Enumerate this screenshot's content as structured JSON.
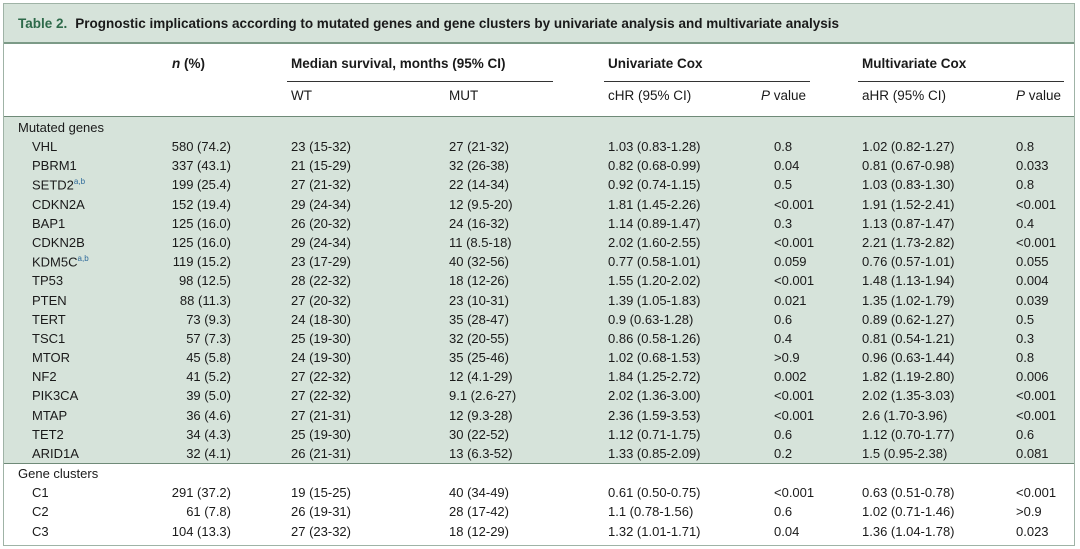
{
  "title": {
    "label": "Table 2.",
    "text": "Prognostic implications according to mutated genes and gene clusters by univariate analysis and multivariate analysis"
  },
  "headers": {
    "n_italic": "n",
    "n_rest": "(%)",
    "median_survival": "Median survival, months (95% CI)",
    "univariate": "Univariate Cox",
    "multivariate": "Multivariate Cox",
    "wt": "WT",
    "mut": "MUT",
    "chr": "cHR (95% CI)",
    "p_italic": "P",
    "p_rest": "value",
    "ahr": "aHR (95% CI)"
  },
  "sections": {
    "mutated": "Mutated genes",
    "clusters": "Gene clusters"
  },
  "mutated_rows": [
    {
      "gene": "VHL",
      "sup": "",
      "n": "580 (74.2)",
      "wt": "23 (15-32)",
      "mut": "27 (21-32)",
      "chr": "1.03 (0.83-1.28)",
      "p1": "0.8",
      "ahr": "1.02 (0.82-1.27)",
      "p2": "0.8"
    },
    {
      "gene": "PBRM1",
      "sup": "",
      "n": "337 (43.1)",
      "wt": "21 (15-29)",
      "mut": "32 (26-38)",
      "chr": "0.82 (0.68-0.99)",
      "p1": "0.04",
      "ahr": "0.81 (0.67-0.98)",
      "p2": "0.033"
    },
    {
      "gene": "SETD2",
      "sup": "a,b",
      "n": "199 (25.4)",
      "wt": "27 (21-32)",
      "mut": "22 (14-34)",
      "chr": "0.92 (0.74-1.15)",
      "p1": "0.5",
      "ahr": "1.03 (0.83-1.30)",
      "p2": "0.8"
    },
    {
      "gene": "CDKN2A",
      "sup": "",
      "n": "152 (19.4)",
      "wt": "29 (24-34)",
      "mut": "12 (9.5-20)",
      "chr": "1.81 (1.45-2.26)",
      "p1": "<0.001",
      "ahr": "1.91 (1.52-2.41)",
      "p2": "<0.001"
    },
    {
      "gene": "BAP1",
      "sup": "",
      "n": "125 (16.0)",
      "wt": "26 (20-32)",
      "mut": "24 (16-32)",
      "chr": "1.14 (0.89-1.47)",
      "p1": "0.3",
      "ahr": "1.13 (0.87-1.47)",
      "p2": "0.4"
    },
    {
      "gene": "CDKN2B",
      "sup": "",
      "n": "125 (16.0)",
      "wt": "29 (24-34)",
      "mut": "11 (8.5-18)",
      "chr": "2.02 (1.60-2.55)",
      "p1": "<0.001",
      "ahr": "2.21 (1.73-2.82)",
      "p2": "<0.001"
    },
    {
      "gene": "KDM5C",
      "sup": "a,b",
      "n": "119 (15.2)",
      "wt": "23 (17-29)",
      "mut": "40 (32-56)",
      "chr": "0.77 (0.58-1.01)",
      "p1": "0.059",
      "ahr": "0.76 (0.57-1.01)",
      "p2": "0.055"
    },
    {
      "gene": "TP53",
      "sup": "",
      "n": "98 (12.5)",
      "wt": "28 (22-32)",
      "mut": "18 (12-26)",
      "chr": "1.55 (1.20-2.02)",
      "p1": "<0.001",
      "ahr": "1.48 (1.13-1.94)",
      "p2": "0.004"
    },
    {
      "gene": "PTEN",
      "sup": "",
      "n": "88 (11.3)",
      "wt": "27 (20-32)",
      "mut": "23 (10-31)",
      "chr": "1.39 (1.05-1.83)",
      "p1": "0.021",
      "ahr": "1.35 (1.02-1.79)",
      "p2": "0.039"
    },
    {
      "gene": "TERT",
      "sup": "",
      "n": "73 (9.3)",
      "wt": "24 (18-30)",
      "mut": "35 (28-47)",
      "chr": "0.9 (0.63-1.28)",
      "p1": "0.6",
      "ahr": "0.89 (0.62-1.27)",
      "p2": "0.5"
    },
    {
      "gene": "TSC1",
      "sup": "",
      "n": "57 (7.3)",
      "wt": "25 (19-30)",
      "mut": "32 (20-55)",
      "chr": "0.86 (0.58-1.26)",
      "p1": "0.4",
      "ahr": "0.81 (0.54-1.21)",
      "p2": "0.3"
    },
    {
      "gene": "MTOR",
      "sup": "",
      "n": "45 (5.8)",
      "wt": "24 (19-30)",
      "mut": "35 (25-46)",
      "chr": "1.02 (0.68-1.53)",
      "p1": ">0.9",
      "ahr": "0.96 (0.63-1.44)",
      "p2": "0.8"
    },
    {
      "gene": "NF2",
      "sup": "",
      "n": "41 (5.2)",
      "wt": "27 (22-32)",
      "mut": "12 (4.1-29)",
      "chr": "1.84 (1.25-2.72)",
      "p1": "0.002",
      "ahr": "1.82 (1.19-2.80)",
      "p2": "0.006"
    },
    {
      "gene": "PIK3CA",
      "sup": "",
      "n": "39 (5.0)",
      "wt": "27 (22-32)",
      "mut": "9.1 (2.6-27)",
      "chr": "2.02 (1.36-3.00)",
      "p1": "<0.001",
      "ahr": "2.02 (1.35-3.03)",
      "p2": "<0.001"
    },
    {
      "gene": "MTAP",
      "sup": "",
      "n": "36 (4.6)",
      "wt": "27 (21-31)",
      "mut": "12 (9.3-28)",
      "chr": "2.36 (1.59-3.53)",
      "p1": "<0.001",
      "ahr": "2.6 (1.70-3.96)",
      "p2": "<0.001"
    },
    {
      "gene": "TET2",
      "sup": "",
      "n": "34 (4.3)",
      "wt": "25 (19-30)",
      "mut": "30 (22-52)",
      "chr": "1.12 (0.71-1.75)",
      "p1": "0.6",
      "ahr": "1.12 (0.70-1.77)",
      "p2": "0.6"
    },
    {
      "gene": "ARID1A",
      "sup": "",
      "n": "32 (4.1)",
      "wt": "26 (21-31)",
      "mut": "13 (6.3-52)",
      "chr": "1.33 (0.85-2.09)",
      "p1": "0.2",
      "ahr": "1.5 (0.95-2.38)",
      "p2": "0.081"
    }
  ],
  "cluster_rows": [
    {
      "gene": "C1",
      "sup": "",
      "n": "291 (37.2)",
      "wt": "19 (15-25)",
      "mut": "40 (34-49)",
      "chr": "0.61 (0.50-0.75)",
      "p1": "<0.001",
      "ahr": "0.63 (0.51-0.78)",
      "p2": "<0.001"
    },
    {
      "gene": "C2",
      "sup": "",
      "n": "61 (7.8)",
      "wt": "26 (19-31)",
      "mut": "28 (17-42)",
      "chr": "1.1 (0.78-1.56)",
      "p1": "0.6",
      "ahr": "1.02 (0.71-1.46)",
      "p2": ">0.9"
    },
    {
      "gene": "C3",
      "sup": "",
      "n": "104 (13.3)",
      "wt": "27 (23-32)",
      "mut": "18 (12-29)",
      "chr": "1.32 (1.01-1.71)",
      "p1": "0.04",
      "ahr": "1.36 (1.04-1.78)",
      "p2": "0.023"
    }
  ]
}
